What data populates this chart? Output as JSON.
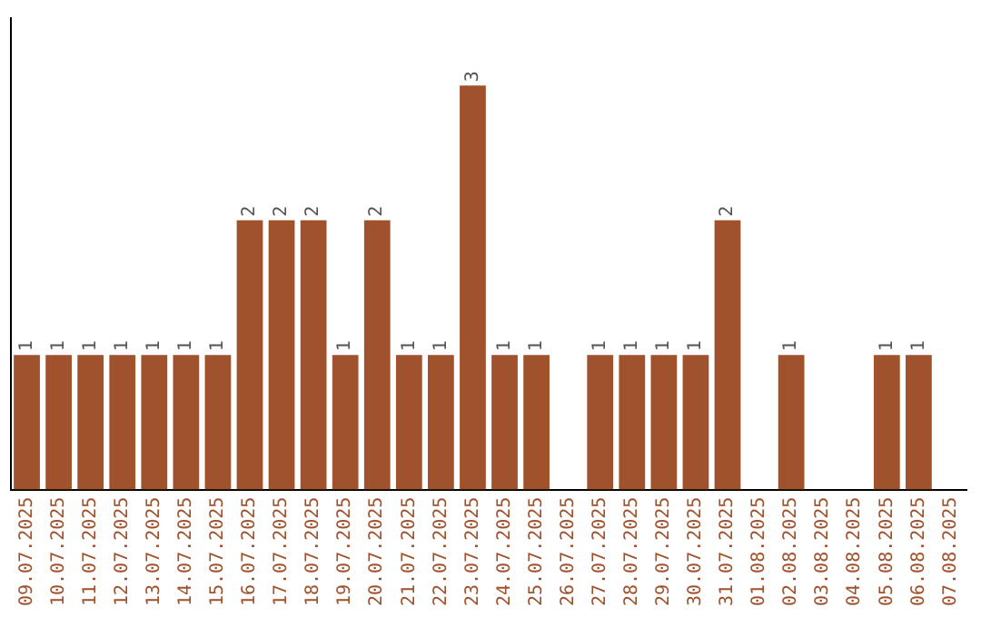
{
  "chart_data": {
    "type": "bar",
    "categories": [
      "09.07.2025",
      "10.07.2025",
      "11.07.2025",
      "12.07.2025",
      "13.07.2025",
      "14.07.2025",
      "15.07.2025",
      "16.07.2025",
      "17.07.2025",
      "18.07.2025",
      "19.07.2025",
      "20.07.2025",
      "21.07.2025",
      "22.07.2025",
      "23.07.2025",
      "24.07.2025",
      "25.07.2025",
      "26.07.2025",
      "27.07.2025",
      "28.07.2025",
      "29.07.2025",
      "30.07.2025",
      "31.07.2025",
      "01.08.2025",
      "02.08.2025",
      "03.08.2025",
      "04.08.2025",
      "05.08.2025",
      "06.08.2025",
      "07.08.2025"
    ],
    "values": [
      1,
      1,
      1,
      1,
      1,
      1,
      1,
      2,
      2,
      2,
      1,
      2,
      1,
      1,
      3,
      1,
      1,
      null,
      1,
      1,
      1,
      1,
      2,
      null,
      1,
      null,
      null,
      1,
      1,
      null
    ],
    "color": "#a0522d",
    "data_labels": true,
    "grid": false,
    "legend": false,
    "tick_labels": "x"
  }
}
